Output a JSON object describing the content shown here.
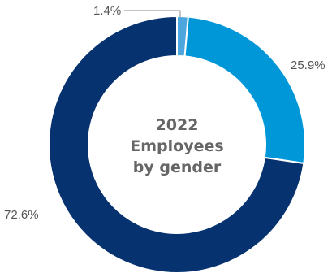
{
  "chart_data": {
    "type": "pie",
    "variant": "donut",
    "title_lines": [
      "2022",
      "Employees",
      "by gender"
    ],
    "slices": [
      {
        "value": 1.4,
        "label": "1.4%",
        "color": "#4da6dd"
      },
      {
        "value": 25.9,
        "label": "25.9%",
        "color": "#0097d8"
      },
      {
        "value": 72.6,
        "label": "72.6%",
        "color": "#06326f"
      }
    ],
    "start": "top",
    "direction": "clockwise",
    "legend": "none"
  }
}
